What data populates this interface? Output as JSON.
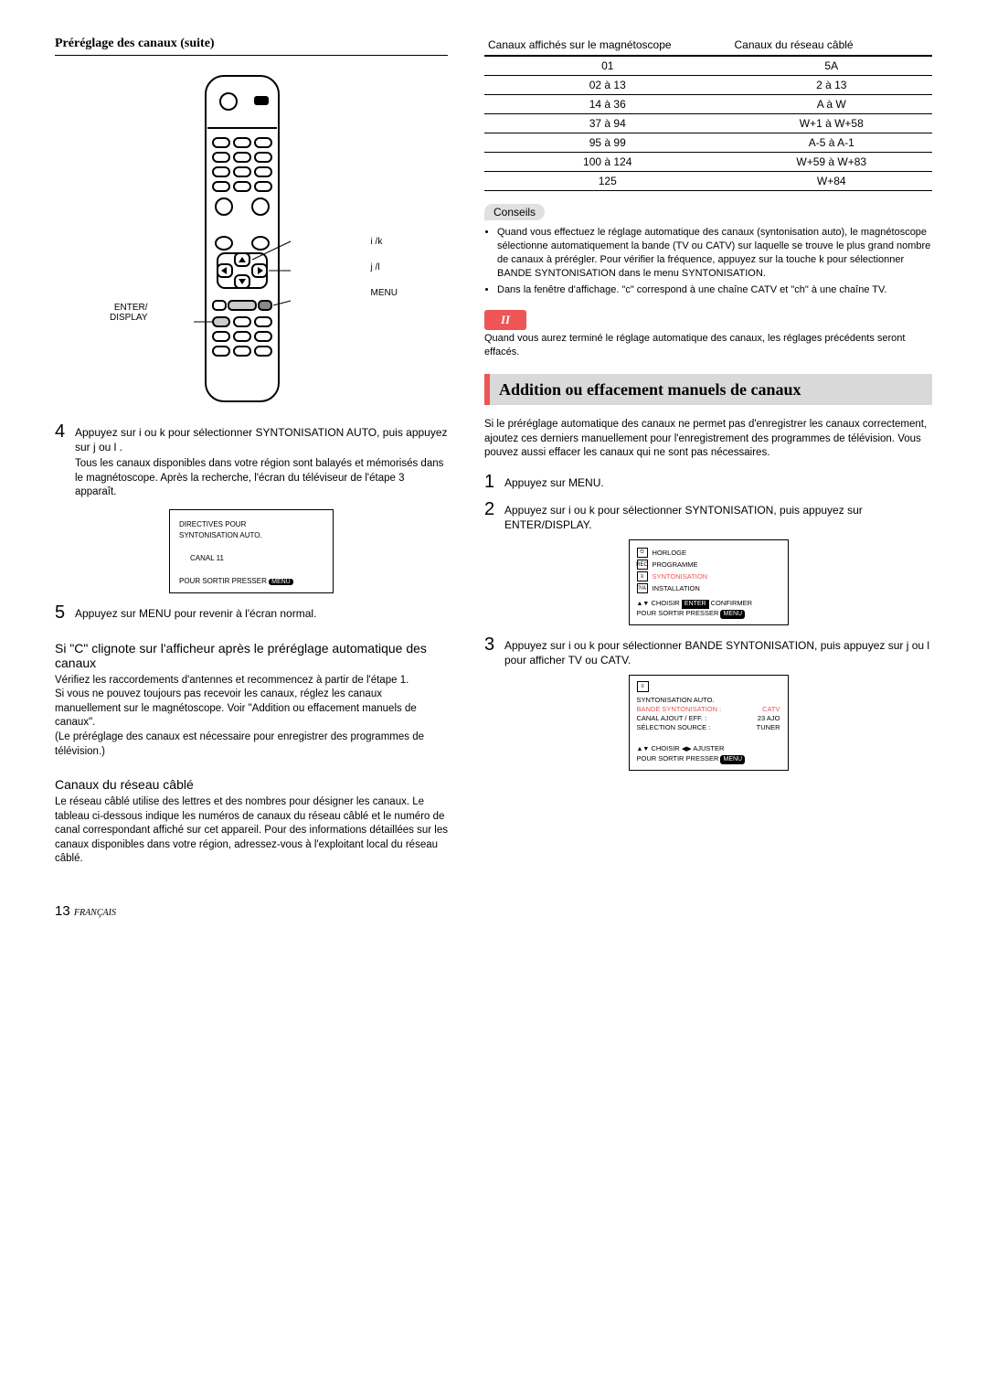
{
  "left": {
    "title": "Préréglage des canaux (suite)",
    "remote_labels": {
      "enter": "ENTER/\nDISPLAY",
      "ik": "i /k",
      "jl": "j /l",
      "menu": "MENU"
    },
    "step4_main": "Appuyez sur  i  ou  k  pour sélectionner SYNTONISATION AUTO, puis appuyez sur j   ou  l .",
    "step4_sub": "Tous les canaux disponibles dans votre région sont balayés et mémorisés dans le magnétoscope. Après la recherche, l'écran du téléviseur de l'étape 3 apparaît.",
    "screen1": {
      "l1": "DIRECTIVES  POUR",
      "l2": "SYNTONISATION  AUTO.",
      "canal": "CANAL   11",
      "foot": "POUR  SORTIR  PRESSER"
    },
    "step5": "Appuyez sur MENU pour revenir  à l'écran normal.",
    "sub1_head": "Si \"C\" clignote sur l'afficheur après le préréglage automatique des canaux",
    "sub1_body": "Vérifiez les raccordements d'antennes et recommencez à partir de l'étape 1.\nSi vous ne pouvez toujours pas recevoir les canaux, réglez les canaux manuellement sur le magnétoscope. Voir \"Addition ou effacement manuels de canaux\".\n(Le préréglage des canaux est nécessaire pour enregistrer des programmes de télévision.)",
    "sub2_head": "Canaux du réseau câblé",
    "sub2_body": "Le réseau câblé utilise des lettres et des nombres pour désigner les canaux. Le tableau ci-dessous indique les numéros de canaux du réseau câblé et le numéro de canal correspondant affiché sur cet appareil. Pour des informations détaillées sur les canaux disponibles dans votre région, adressez-vous à l'exploitant local du réseau câblé."
  },
  "right": {
    "table": {
      "h1": "Canaux affichés sur le magnétoscope",
      "h2": "Canaux du réseau câblé",
      "rows": [
        [
          "01",
          "5A"
        ],
        [
          "02 à 13",
          "2 à 13"
        ],
        [
          "14 à 36",
          "A à W"
        ],
        [
          "37 à 94",
          "W+1 à W+58"
        ],
        [
          "95 à 99",
          "A-5 à A-1"
        ],
        [
          "100 à 124",
          "W+59 à W+83"
        ],
        [
          "125",
          "W+84"
        ]
      ]
    },
    "conseils_label": "Conseils",
    "conseils": [
      "Quand vous effectuez le réglage automatique des canaux (syntonisation auto), le magnétoscope sélectionne automatiquement la bande (TV ou CATV) sur laquelle se trouve le plus grand nombre de canaux à prérégler. Pour vérifier la fréquence, appuyez sur la touche k  pour sélectionner BANDE SYNTONISATION dans le menu SYNTONISATION.",
      "Dans la fenêtre d'affichage. \"c\" correspond à une chaîne CATV et \"ch\" à une chaîne TV."
    ],
    "warn_mark": "II",
    "warn_text": "Quand vous aurez terminé le réglage automatique des canaux, les réglages précédents seront effacés.",
    "feature_title": "Addition ou effacement manuels de canaux",
    "feature_intro": "Si le préréglage automatique des canaux ne permet pas d'enregistrer les canaux correctement, ajoutez ces derniers manuellement pour l'enregistrement des programmes de télévision. Vous pouvez aussi effacer les canaux qui ne sont pas nécessaires.",
    "step1": "Appuyez sur MENU.",
    "step2": "Appuyez sur  i  ou  k  pour sélectionner SYNTONISATION, puis appuyez sur ENTER/DISPLAY.",
    "menu_screen": {
      "items": [
        {
          "icon": "⏲",
          "label": "HORLOGE"
        },
        {
          "icon": "REC",
          "label": "PROGRAMME"
        },
        {
          "icon": "≡",
          "label": "SYNTONISATION",
          "hl": true
        },
        {
          "icon": "?/A",
          "label": "INSTALLATION"
        }
      ],
      "foot1a": "CHOISIR",
      "foot1b": "CONFIRMER",
      "foot2": "POUR  SORTIR  PRESSER"
    },
    "step3": "Appuyez sur  i  ou  k  pour sélectionner BANDE SYNTONISATION, puis appuyez sur  j  ou  l pour afficher TV ou CATV.",
    "tune_screen": {
      "r1": [
        "SYNTONISATION  AUTO.",
        ""
      ],
      "r2": [
        "BANDE  SYNTONISATION :",
        "CATV"
      ],
      "r3": [
        "CANAL  AJOUT / EFF. :",
        "23    AJO"
      ],
      "r4": [
        "SÉLECTION  SOURCE :",
        "TUNER"
      ],
      "foot1a": "CHOISIR",
      "foot1b": "AJUSTER",
      "foot2": "POUR  SORTIR  PRESSER"
    }
  },
  "page_number": "13",
  "page_lang": "FRANÇAIS"
}
